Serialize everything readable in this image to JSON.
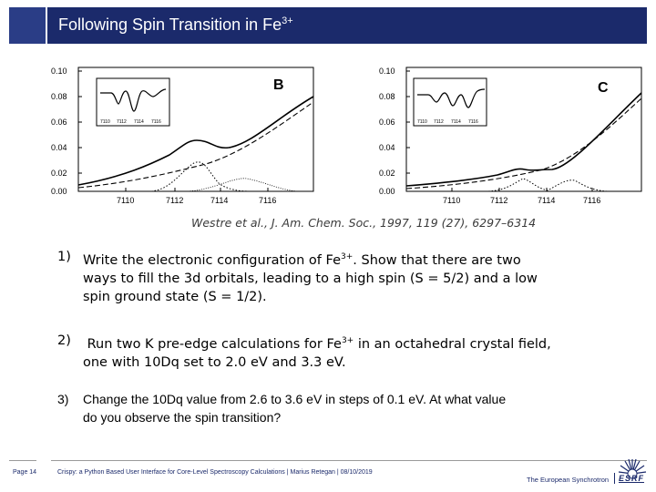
{
  "header": {
    "title": "Following Spin Transition in Fe",
    "title_sup": "3+",
    "background": "#1b2a6b"
  },
  "figures": [
    {
      "panel_label": "B",
      "y_ticks": [
        "0.10",
        "0.08",
        "0.06",
        "0.04",
        "0.02",
        "0.00"
      ],
      "x_ticks": [
        "7110",
        "7112",
        "7114",
        "7116"
      ],
      "inset_ticks": [
        "7110",
        "7112",
        "7114",
        "7116"
      ]
    },
    {
      "panel_label": "C",
      "y_ticks": [
        "0.10",
        "0.08",
        "0.06",
        "0.04",
        "0.02",
        "0.00"
      ],
      "x_ticks": [
        "7110",
        "7112",
        "7114",
        "7116"
      ],
      "inset_ticks": [
        "7110",
        "7112",
        "7114",
        "7116"
      ]
    }
  ],
  "citation": "Westre et al., J. Am. Chem. Soc., 1997, 119 (27), 6297–6314",
  "tasks": [
    {
      "number": "1)",
      "line1_pre": "Write the electronic configuration of Fe",
      "line1_sup": "3+",
      "line1_post": ". Show that there are two",
      "line2": "ways to fill the 3d orbitals, leading to a high spin (S = 5/2) and a low",
      "line3": "spin ground state (S = 1/2)."
    },
    {
      "number": "2)",
      "line1_pre": " Run two K pre-edge calculations for Fe",
      "line1_sup": "3+",
      "line1_post": " in an octahedral crystal field,",
      "line2": "one with 10Dq set to 2.0 eV and 3.3 eV."
    },
    {
      "number": "3)",
      "line1": "Change the 10Dq value from 2.6 to 3.6 eV in steps of 0.1 eV. At what value",
      "line2": "do you observe the spin transition?"
    }
  ],
  "footer": {
    "page": "Page 14",
    "text": "Crispy: a Python Based User Interface for Core-Level Spectroscopy Calculations | Marius Retegan | 08/10/2019",
    "org": "The European Synchrotron",
    "logo_text": "ESRF",
    "color": "#1b2a6b"
  }
}
